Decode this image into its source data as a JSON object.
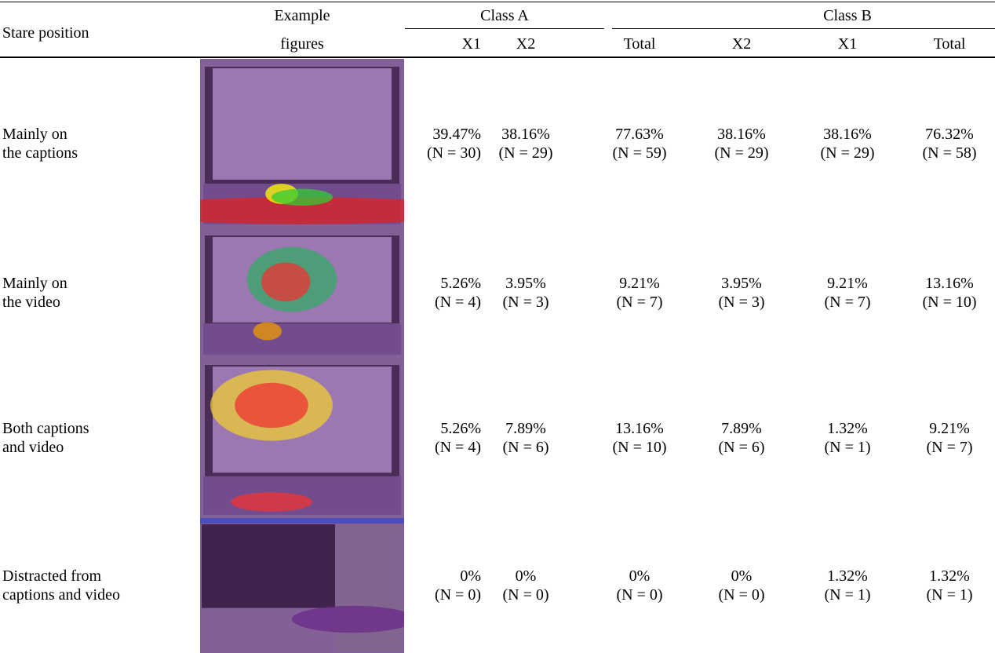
{
  "table": {
    "header": {
      "stare_position": "Stare position",
      "example": [
        "Example",
        "figures"
      ],
      "class_a": "Class A",
      "class_b": "Class B",
      "columns": [
        "X1",
        "X2",
        "Total",
        "X2",
        "X1",
        "Total"
      ]
    },
    "rows": [
      {
        "label": [
          "Mainly on",
          "the captions"
        ],
        "cells": [
          [
            "39.47%",
            "(N = 30)"
          ],
          [
            "38.16%",
            "(N = 29)"
          ],
          [
            "77.63%",
            "(N = 59)"
          ],
          [
            "38.16%",
            "(N = 29)"
          ],
          [
            "38.16%",
            "(N = 29)"
          ],
          [
            "76.32%",
            "(N = 58)"
          ]
        ]
      },
      {
        "label": [
          "Mainly on",
          "the video"
        ],
        "cells": [
          [
            "5.26%",
            "(N = 4)"
          ],
          [
            "3.95%",
            "(N = 3)"
          ],
          [
            "9.21%",
            "(N = 7)"
          ],
          [
            "3.95%",
            "(N = 3)"
          ],
          [
            "9.21%",
            "(N = 7)"
          ],
          [
            "13.16%",
            "(N = 10)"
          ]
        ]
      },
      {
        "label": [
          "Both captions",
          "and video"
        ],
        "cells": [
          [
            "5.26%",
            "(N = 4)"
          ],
          [
            "7.89%",
            "(N = 6)"
          ],
          [
            "13.16%",
            "(N = 10)"
          ],
          [
            "7.89%",
            "(N = 6)"
          ],
          [
            "1.32%",
            "(N = 1)"
          ],
          [
            "9.21%",
            "(N = 7)"
          ]
        ]
      },
      {
        "label": [
          "Distracted from",
          "captions and video"
        ],
        "cells": [
          [
            "0%",
            "(N = 0)"
          ],
          [
            "0%",
            "(N = 0)"
          ],
          [
            "0%",
            "(N = 0)"
          ],
          [
            "0%",
            "(N = 0)"
          ],
          [
            "1.32%",
            "(N = 1)"
          ],
          [
            "1.32%",
            "(N = 1)"
          ]
        ]
      }
    ]
  }
}
